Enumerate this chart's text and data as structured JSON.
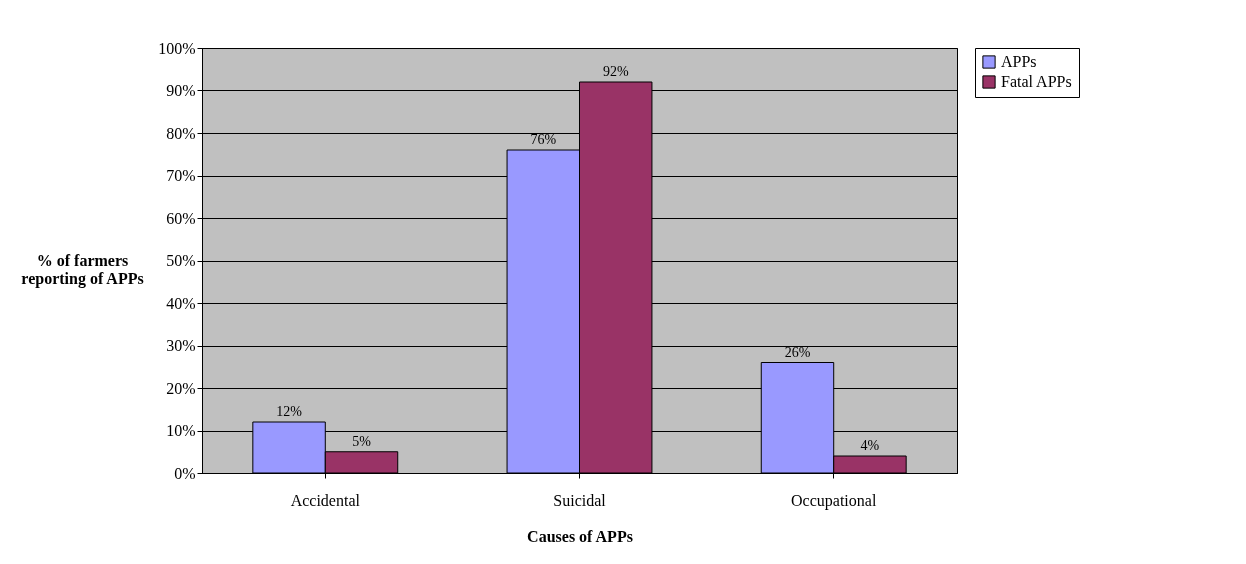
{
  "chart_data": {
    "type": "bar",
    "xlabel": "Causes of APPs",
    "ylabel": "% of farmers\nreporting of APPs",
    "categories": [
      "Accidental",
      "Suicidal",
      "Occupational"
    ],
    "series": [
      {
        "name": "APPs",
        "color": "#9999ff",
        "values": [
          12,
          76,
          26
        ],
        "value_labels": [
          "12%",
          "76%",
          "26%"
        ]
      },
      {
        "name": "Fatal APPs",
        "color": "#993366",
        "values": [
          5,
          92,
          4
        ],
        "value_labels": [
          "5%",
          "92%",
          "4%"
        ]
      }
    ],
    "ylim": [
      0,
      100
    ],
    "yticks": [
      {
        "value": 0,
        "label": "0%"
      },
      {
        "value": 10,
        "label": "10%"
      },
      {
        "value": 20,
        "label": "20%"
      },
      {
        "value": 30,
        "label": "30%"
      },
      {
        "value": 40,
        "label": "40%"
      },
      {
        "value": 50,
        "label": "50%"
      },
      {
        "value": 60,
        "label": "60%"
      },
      {
        "value": 70,
        "label": "70%"
      },
      {
        "value": 80,
        "label": "80%"
      },
      {
        "value": 90,
        "label": "90%"
      },
      {
        "value": 100,
        "label": "100%"
      }
    ],
    "grid": "y",
    "legend": "right"
  }
}
